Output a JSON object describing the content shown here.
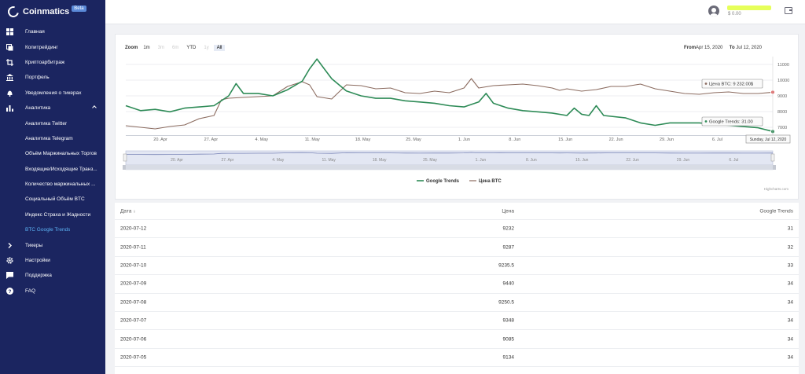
{
  "brand": {
    "name": "Coinmatics",
    "badge": "Beta"
  },
  "sidebar": {
    "items": [
      {
        "label": "Главная",
        "icon": "dashboard-icon",
        "type": "top"
      },
      {
        "label": "Копитрейдинг",
        "icon": "copy-icon",
        "type": "top"
      },
      {
        "label": "Криптоарбитраж",
        "icon": "crop-icon",
        "type": "top"
      },
      {
        "label": "Портфель",
        "icon": "bank-icon",
        "type": "top"
      },
      {
        "label": "Уведомления о тикерах",
        "icon": "bell-icon",
        "type": "top"
      },
      {
        "label": "Аналитика",
        "icon": "bar-chart-icon",
        "type": "top",
        "expanded": true
      },
      {
        "label": "Аналитика Twitter",
        "type": "sub"
      },
      {
        "label": "Аналитика Telegram",
        "type": "sub"
      },
      {
        "label": "Объём Маржинальных Торгов",
        "type": "sub"
      },
      {
        "label": "Входящие/Исходящие Транз...",
        "type": "sub"
      },
      {
        "label": "Количество маржинальных ...",
        "type": "sub"
      },
      {
        "label": "Социальный Объём BTC",
        "type": "sub"
      },
      {
        "label": "Индекс Страха и Жадности",
        "type": "sub"
      },
      {
        "label": "BTC Google Trends",
        "type": "sub",
        "active": true
      },
      {
        "label": "Тикеры",
        "icon": "chevron-right-icon",
        "type": "top"
      },
      {
        "label": "Настройки",
        "icon": "gear-icon",
        "type": "top"
      },
      {
        "label": "Поддержка",
        "icon": "chat-icon",
        "type": "top"
      },
      {
        "label": "FAQ",
        "icon": "help-icon",
        "type": "top"
      }
    ]
  },
  "topbar": {
    "balance": "$ 0.00"
  },
  "chart": {
    "zoom_label": "Zoom",
    "zoom_options": [
      {
        "label": "1m",
        "state": "normal"
      },
      {
        "label": "3m",
        "state": "disabled"
      },
      {
        "label": "6m",
        "state": "disabled"
      },
      {
        "label": "YTD",
        "state": "normal"
      },
      {
        "label": "1y",
        "state": "disabled"
      },
      {
        "label": "All",
        "state": "selected"
      }
    ],
    "from_label": "From",
    "from_value": "Apr 15, 2020",
    "to_label": "To",
    "to_value": "Jul 12, 2020",
    "tooltip_price": "Цена BTC: 9 232.00$",
    "tooltip_trend": "Google Trends: 31.00",
    "tooltip_date": "Sunday, Jul 12, 2020",
    "credits": "Highcharts.com",
    "colors": {
      "trends": "#2e8b57",
      "price": "#8b6b5f",
      "navigator": "#7b86b8"
    }
  },
  "chart_data": {
    "type": "line",
    "x_tick_labels": [
      "20. Apr",
      "27. Apr",
      "4. May",
      "11. May",
      "18. May",
      "25. May",
      "1. Jun",
      "8. Jun",
      "15. Jun",
      "22. Jun",
      "29. Jun",
      "6. Jul"
    ],
    "navigator_tick_labels": [
      "20. Apr",
      "27. Apr",
      "4. May",
      "11. May",
      "18. May",
      "25. May",
      "1. Jun",
      "8. Jun",
      "15. Jun",
      "22. Jun",
      "29. Jun",
      "6. Jul"
    ],
    "y_right_ticks": [
      7000,
      8000,
      9000,
      10000,
      11000
    ],
    "y_right_tick_labels": [
      "7000",
      "8000",
      "9000",
      "10000",
      "11000"
    ],
    "ylim_price": [
      6500,
      11500
    ],
    "ylim_trends": [
      28,
      92
    ],
    "legend_position": "bottom-center",
    "series": [
      {
        "name": "Google Trends",
        "color": "#2e8b57",
        "values": [
          [
            0,
            52
          ],
          [
            2,
            48
          ],
          [
            4,
            49
          ],
          [
            6,
            47
          ],
          [
            8,
            50
          ],
          [
            10,
            51
          ],
          [
            12,
            52
          ],
          [
            14,
            60
          ],
          [
            15,
            70
          ],
          [
            16,
            62
          ],
          [
            18,
            62
          ],
          [
            20,
            60
          ],
          [
            22,
            65
          ],
          [
            24,
            72
          ],
          [
            25,
            82
          ],
          [
            26,
            90
          ],
          [
            27,
            82
          ],
          [
            28,
            74
          ],
          [
            30,
            64
          ],
          [
            32,
            60
          ],
          [
            34,
            58
          ],
          [
            36,
            58
          ],
          [
            38,
            56
          ],
          [
            40,
            55
          ],
          [
            42,
            54
          ],
          [
            44,
            52
          ],
          [
            46,
            51
          ],
          [
            48,
            55
          ],
          [
            49,
            62
          ],
          [
            50,
            54
          ],
          [
            52,
            50
          ],
          [
            54,
            48
          ],
          [
            56,
            47
          ],
          [
            58,
            46
          ],
          [
            60,
            44
          ],
          [
            61,
            50
          ],
          [
            62,
            45
          ],
          [
            63,
            44
          ],
          [
            64,
            52
          ],
          [
            65,
            44
          ],
          [
            68,
            42
          ],
          [
            70,
            38
          ],
          [
            72,
            36
          ],
          [
            74,
            38
          ],
          [
            76,
            38
          ],
          [
            78,
            38
          ],
          [
            80,
            37
          ],
          [
            82,
            36
          ],
          [
            84,
            35
          ],
          [
            86,
            34
          ],
          [
            88,
            31
          ]
        ]
      },
      {
        "name": "Цена BTC",
        "color": "#8b6b5f",
        "values": [
          [
            0,
            7100
          ],
          [
            2,
            7000
          ],
          [
            4,
            6900
          ],
          [
            6,
            7050
          ],
          [
            8,
            7150
          ],
          [
            10,
            7550
          ],
          [
            12,
            7750
          ],
          [
            13,
            8750
          ],
          [
            14,
            8850
          ],
          [
            16,
            8900
          ],
          [
            18,
            8950
          ],
          [
            20,
            9000
          ],
          [
            22,
            9600
          ],
          [
            24,
            9900
          ],
          [
            25,
            9700
          ],
          [
            26,
            8950
          ],
          [
            28,
            8800
          ],
          [
            30,
            9700
          ],
          [
            32,
            9650
          ],
          [
            34,
            9450
          ],
          [
            36,
            9500
          ],
          [
            38,
            9200
          ],
          [
            40,
            9150
          ],
          [
            42,
            9300
          ],
          [
            44,
            9200
          ],
          [
            46,
            9500
          ],
          [
            47,
            10100
          ],
          [
            48,
            9500
          ],
          [
            50,
            9650
          ],
          [
            52,
            9700
          ],
          [
            54,
            9750
          ],
          [
            56,
            9650
          ],
          [
            58,
            9500
          ],
          [
            59,
            9350
          ],
          [
            60,
            9450
          ],
          [
            62,
            9300
          ],
          [
            64,
            9400
          ],
          [
            66,
            9600
          ],
          [
            68,
            9600
          ],
          [
            70,
            9750
          ],
          [
            72,
            9450
          ],
          [
            74,
            9300
          ],
          [
            76,
            9150
          ],
          [
            78,
            9100
          ],
          [
            80,
            9200
          ],
          [
            82,
            9250
          ],
          [
            84,
            9150
          ],
          [
            86,
            9150
          ],
          [
            88,
            9232
          ]
        ]
      }
    ]
  },
  "table": {
    "headers": {
      "date": "Дата",
      "price": "Цена",
      "trends": "Google Trends"
    },
    "rows": [
      {
        "date": "2020-07-12",
        "price": "9232",
        "trends": "31"
      },
      {
        "date": "2020-07-11",
        "price": "9287",
        "trends": "32"
      },
      {
        "date": "2020-07-10",
        "price": "9235.5",
        "trends": "33"
      },
      {
        "date": "2020-07-09",
        "price": "9440",
        "trends": "34"
      },
      {
        "date": "2020-07-08",
        "price": "9250.5",
        "trends": "34"
      },
      {
        "date": "2020-07-07",
        "price": "9348",
        "trends": "34"
      },
      {
        "date": "2020-07-06",
        "price": "9085",
        "trends": "34"
      },
      {
        "date": "2020-07-05",
        "price": "9134",
        "trends": "34"
      }
    ]
  }
}
